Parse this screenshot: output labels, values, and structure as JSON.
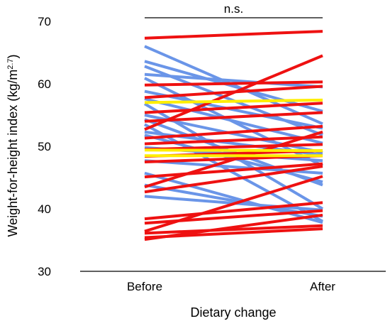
{
  "chart_data": {
    "type": "line",
    "xlabel": "Dietary change",
    "ylabel_main": "Weight-for-height index (kg/m",
    "ylabel_sup": "2.7",
    "ylabel_close": ")",
    "categories": [
      "Before",
      "After"
    ],
    "ylim": [
      30,
      70
    ],
    "yticks": [
      30,
      40,
      50,
      60,
      70
    ],
    "grid": false,
    "annotation": "n.s.",
    "colors": {
      "increase": "#ee1111",
      "decrease": "#6a95e8",
      "no_change": "#ffee00"
    },
    "series": [
      {
        "group": "decrease",
        "values": [
          66.0,
          53.6
        ]
      },
      {
        "group": "decrease",
        "values": [
          63.6,
          55.6
        ]
      },
      {
        "group": "decrease",
        "values": [
          62.8,
          51.8
        ]
      },
      {
        "group": "decrease",
        "values": [
          60.9,
          46.9
        ]
      },
      {
        "group": "decrease",
        "values": [
          58.8,
          52.9
        ]
      },
      {
        "group": "decrease",
        "values": [
          56.8,
          40.0
        ]
      },
      {
        "group": "decrease",
        "values": [
          55.0,
          49.0
        ]
      },
      {
        "group": "decrease",
        "values": [
          54.3,
          43.8
        ]
      },
      {
        "group": "decrease",
        "values": [
          53.5,
          38.0
        ]
      },
      {
        "group": "decrease",
        "values": [
          52.3,
          48.6
        ]
      },
      {
        "group": "decrease",
        "values": [
          51.8,
          44.3
        ]
      },
      {
        "group": "decrease",
        "values": [
          47.7,
          45.7
        ]
      },
      {
        "group": "decrease",
        "values": [
          45.7,
          37.8
        ]
      },
      {
        "group": "decrease",
        "values": [
          43.8,
          38.8
        ]
      },
      {
        "group": "decrease",
        "values": [
          42.0,
          39.8
        ]
      },
      {
        "group": "decrease",
        "values": [
          49.8,
          47.7
        ]
      },
      {
        "group": "decrease",
        "values": [
          61.5,
          59.5
        ]
      },
      {
        "group": "decrease",
        "values": [
          57.6,
          50.5
        ]
      },
      {
        "group": "increase",
        "values": [
          67.3,
          68.4
        ]
      },
      {
        "group": "increase",
        "values": [
          59.8,
          60.3
        ]
      },
      {
        "group": "increase",
        "values": [
          57.8,
          59.6
        ]
      },
      {
        "group": "increase",
        "values": [
          55.4,
          56.9
        ]
      },
      {
        "group": "increase",
        "values": [
          54.0,
          55.4
        ]
      },
      {
        "group": "increase",
        "values": [
          52.7,
          64.5
        ]
      },
      {
        "group": "increase",
        "values": [
          51.3,
          53.2
        ]
      },
      {
        "group": "increase",
        "values": [
          50.4,
          51.5
        ]
      },
      {
        "group": "increase",
        "values": [
          49.5,
          50.3
        ]
      },
      {
        "group": "increase",
        "values": [
          48.4,
          49.3
        ]
      },
      {
        "group": "increase",
        "values": [
          47.5,
          48.5
        ]
      },
      {
        "group": "increase",
        "values": [
          45.1,
          47.2
        ]
      },
      {
        "group": "increase",
        "values": [
          43.5,
          52.3
        ]
      },
      {
        "group": "increase",
        "values": [
          42.7,
          46.8
        ]
      },
      {
        "group": "increase",
        "values": [
          38.4,
          41.0
        ]
      },
      {
        "group": "increase",
        "values": [
          37.7,
          39.7
        ]
      },
      {
        "group": "increase",
        "values": [
          36.4,
          45.2
        ]
      },
      {
        "group": "increase",
        "values": [
          36.1,
          37.3
        ]
      },
      {
        "group": "increase",
        "values": [
          35.4,
          36.8
        ]
      },
      {
        "group": "increase",
        "values": [
          35.1,
          39.0
        ]
      },
      {
        "group": "no_change",
        "values": [
          57.0,
          57.4
        ]
      },
      {
        "group": "no_change",
        "values": [
          49.4,
          49.3
        ]
      },
      {
        "group": "no_change",
        "values": [
          48.5,
          48.5
        ]
      }
    ]
  }
}
